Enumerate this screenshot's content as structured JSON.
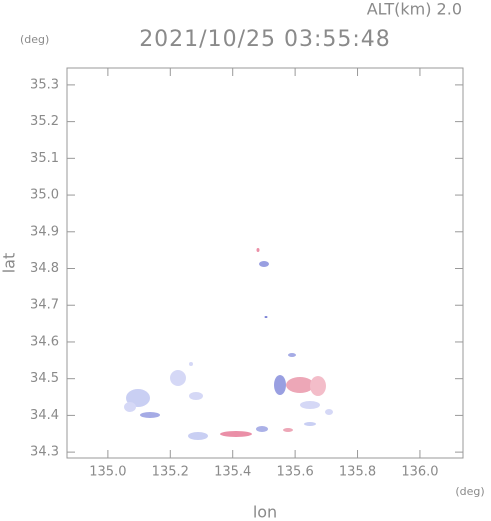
{
  "chart_data": {
    "type": "radar-map",
    "title": "2021/10/25 03:55:48",
    "subtitle": "ALT(km) 2.0",
    "x_label": "lon",
    "x_unit": "(deg)",
    "y_label": "lat",
    "y_unit": "(deg)",
    "xlim": [
      134.869,
      136.138
    ],
    "ylim": [
      34.284,
      35.346
    ],
    "xticks": [
      {
        "value": 135.0,
        "label": "135.0"
      },
      135.2,
      135.4,
      135.6,
      135.8,
      {
        "value": 136.0,
        "label": "136.0"
      }
    ],
    "yticks": [
      34.3,
      34.4,
      34.5,
      34.6,
      34.7,
      34.8,
      34.9,
      {
        "value": 35.0,
        "label": "35.0"
      },
      35.1,
      35.2,
      35.3
    ]
  }
}
